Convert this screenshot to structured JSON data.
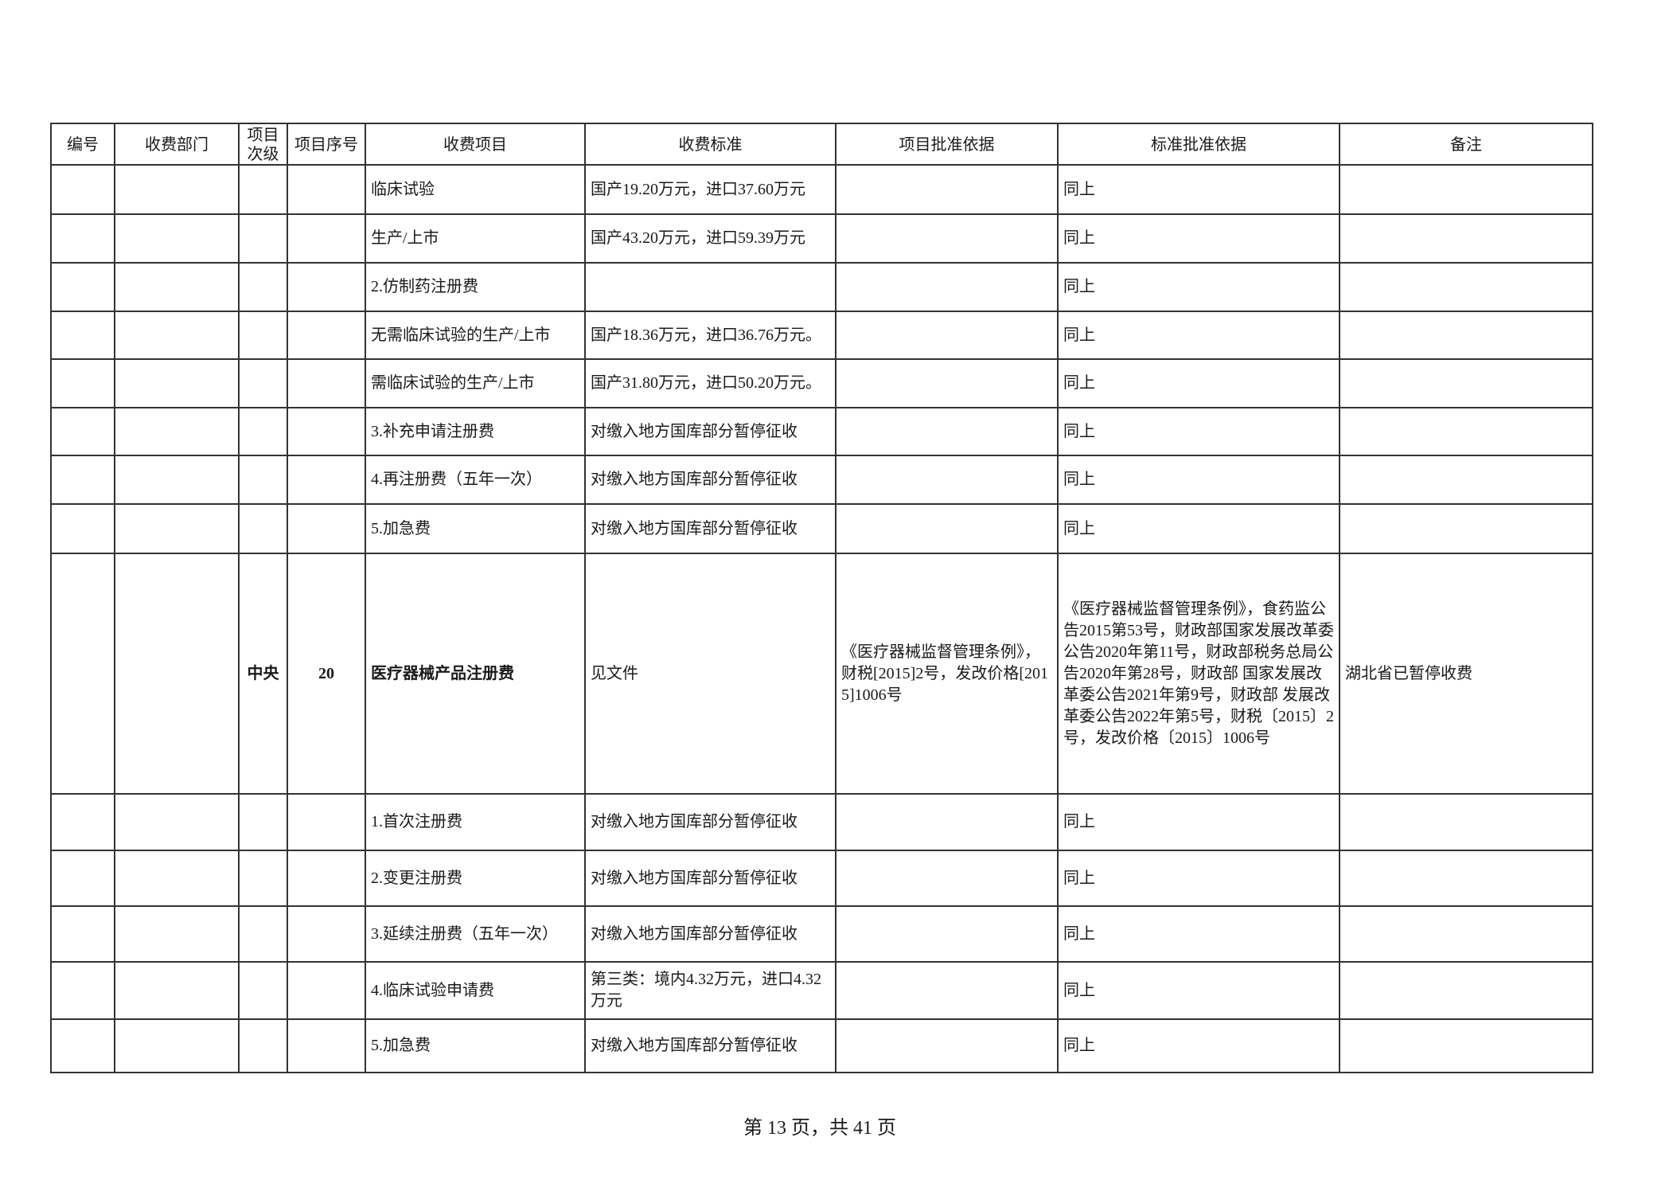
{
  "headers": [
    "编号",
    "收费部门",
    "项目次级",
    "项目序号",
    "收费项目",
    "收费标准",
    "项目批准依据",
    "标准批准依据",
    "备注"
  ],
  "rows": [
    {
      "no": "",
      "dept": "",
      "level": "",
      "seq": "",
      "item": "临床试验",
      "standard": "国产19.20万元，进口37.60万元",
      "item_basis": "",
      "std_basis": "同上",
      "note": ""
    },
    {
      "no": "",
      "dept": "",
      "level": "",
      "seq": "",
      "item": "生产/上市",
      "standard": "国产43.20万元，进口59.39万元",
      "item_basis": "",
      "std_basis": "同上",
      "note": ""
    },
    {
      "no": "",
      "dept": "",
      "level": "",
      "seq": "",
      "item": "2.仿制药注册费",
      "standard": "",
      "item_basis": "",
      "std_basis": "同上",
      "note": ""
    },
    {
      "no": "",
      "dept": "",
      "level": "",
      "seq": "",
      "item": "无需临床试验的生产/上市",
      "standard": "国产18.36万元，进口36.76万元。",
      "item_basis": "",
      "std_basis": "同上",
      "note": ""
    },
    {
      "no": "",
      "dept": "",
      "level": "",
      "seq": "",
      "item": "需临床试验的生产/上市",
      "standard": "国产31.80万元，进口50.20万元。",
      "item_basis": "",
      "std_basis": "同上",
      "note": ""
    },
    {
      "no": "",
      "dept": "",
      "level": "",
      "seq": "",
      "item": "3.补充申请注册费",
      "standard": "对缴入地方国库部分暂停征收",
      "item_basis": "",
      "std_basis": "同上",
      "note": ""
    },
    {
      "no": "",
      "dept": "",
      "level": "",
      "seq": "",
      "item": "4.再注册费（五年一次）",
      "standard": "对缴入地方国库部分暂停征收",
      "item_basis": "",
      "std_basis": "同上",
      "note": ""
    },
    {
      "no": "",
      "dept": "",
      "level": "",
      "seq": "",
      "item": "5.加急费",
      "standard": "对缴入地方国库部分暂停征收",
      "item_basis": "",
      "std_basis": "同上",
      "note": ""
    },
    {
      "no": "",
      "dept": "",
      "level": "中央",
      "seq": "20",
      "item": "医疗器械产品注册费",
      "standard": "见文件",
      "item_basis": "《医疗器械监督管理条例》，财税[2015]2号，发改价格[2015]1006号",
      "std_basis": "《医疗器械监督管理条例》，食药监公告2015第53号，财政部国家发展改革委公告2020年第11号，财政部税务总局公告2020年第28号，财政部 国家发展改革委公告2021年第9号，财政部 发展改革委公告2022年第5号，财税〔2015〕2号，发改价格〔2015〕1006号",
      "note": "湖北省已暂停收费"
    },
    {
      "no": "",
      "dept": "",
      "level": "",
      "seq": "",
      "item": "1.首次注册费",
      "standard": "对缴入地方国库部分暂停征收",
      "item_basis": "",
      "std_basis": "同上",
      "note": ""
    },
    {
      "no": "",
      "dept": "",
      "level": "",
      "seq": "",
      "item": "2.变更注册费",
      "standard": "对缴入地方国库部分暂停征收",
      "item_basis": "",
      "std_basis": "同上",
      "note": ""
    },
    {
      "no": "",
      "dept": "",
      "level": "",
      "seq": "",
      "item": "3.延续注册费（五年一次）",
      "standard": "对缴入地方国库部分暂停征收",
      "item_basis": "",
      "std_basis": "同上",
      "note": ""
    },
    {
      "no": "",
      "dept": "",
      "level": "",
      "seq": "",
      "item": "4.临床试验申请费",
      "standard": "第三类：境内4.32万元，进口4.32万元",
      "item_basis": "",
      "std_basis": "同上",
      "note": ""
    },
    {
      "no": "",
      "dept": "",
      "level": "",
      "seq": "",
      "item": "5.加急费",
      "standard": "对缴入地方国库部分暂停征收",
      "item_basis": "",
      "std_basis": "同上",
      "note": ""
    }
  ],
  "footer": "第 13 页，共 41 页"
}
